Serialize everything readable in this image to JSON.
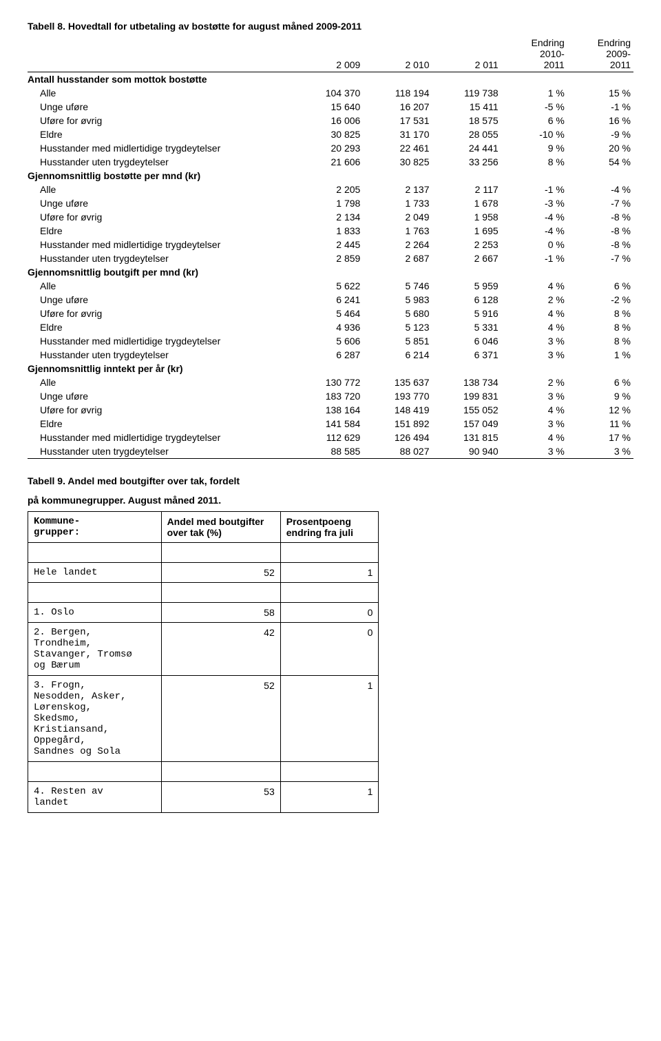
{
  "table8": {
    "title": "Tabell 8. Hovedtall for utbetaling av bostøtte for august måned 2009-2011",
    "headers": [
      "",
      "2 009",
      "2 010",
      "2 011",
      "Endring\n2010-\n2011",
      "Endring\n2009-\n2011"
    ],
    "sections": [
      {
        "label": "Antall husstander som mottok bostøtte",
        "rows": [
          [
            "Alle",
            "104 370",
            "118 194",
            "119 738",
            "1 %",
            "15 %"
          ],
          [
            "Unge uføre",
            "15 640",
            "16 207",
            "15 411",
            "-5 %",
            "-1 %"
          ],
          [
            "Uføre for øvrig",
            "16 006",
            "17 531",
            "18 575",
            "6 %",
            "16 %"
          ],
          [
            "Eldre",
            "30 825",
            "31 170",
            "28 055",
            "-10 %",
            "-9 %"
          ],
          [
            "Husstander med midlertidige trygdeytelser",
            "20 293",
            "22 461",
            "24 441",
            "9 %",
            "20 %"
          ],
          [
            "Husstander uten trygdeytelser",
            "21 606",
            "30 825",
            "33 256",
            "8 %",
            "54 %"
          ]
        ]
      },
      {
        "label": "Gjennomsnittlig bostøtte per mnd  (kr)",
        "rows": [
          [
            "Alle",
            "2 205",
            "2 137",
            "2 117",
            "-1 %",
            "-4 %"
          ],
          [
            "Unge uføre",
            "1 798",
            "1 733",
            "1 678",
            "-3 %",
            "-7 %"
          ],
          [
            "Uføre for øvrig",
            "2 134",
            "2 049",
            "1 958",
            "-4 %",
            "-8 %"
          ],
          [
            "Eldre",
            "1 833",
            "1 763",
            "1 695",
            "-4 %",
            "-8 %"
          ],
          [
            "Husstander med midlertidige trygdeytelser",
            "2 445",
            "2 264",
            "2 253",
            "0 %",
            "-8 %"
          ],
          [
            "Husstander uten trygdeytelser",
            "2 859",
            "2 687",
            "2 667",
            "-1 %",
            "-7 %"
          ]
        ]
      },
      {
        "label": "Gjennomsnittlig boutgift per mnd (kr)",
        "rows": [
          [
            "Alle",
            "5 622",
            "5 746",
            "5 959",
            "4 %",
            "6 %"
          ],
          [
            "Unge uføre",
            "6 241",
            "5 983",
            "6 128",
            "2 %",
            "-2 %"
          ],
          [
            "Uføre for øvrig",
            "5 464",
            "5 680",
            "5 916",
            "4 %",
            "8 %"
          ],
          [
            "Eldre",
            "4 936",
            "5 123",
            "5 331",
            "4 %",
            "8 %"
          ],
          [
            "Husstander med midlertidige trygdeytelser",
            "5 606",
            "5 851",
            "6 046",
            "3 %",
            "8 %"
          ],
          [
            "Husstander uten trygdeytelser",
            "6 287",
            "6 214",
            "6 371",
            "3 %",
            "1 %"
          ]
        ]
      },
      {
        "label": "Gjennomsnittlig inntekt per år (kr)",
        "rows": [
          [
            "Alle",
            "130 772",
            "135 637",
            "138 734",
            "2 %",
            "6 %"
          ],
          [
            "Unge uføre",
            "183 720",
            "193 770",
            "199 831",
            "3 %",
            "9 %"
          ],
          [
            "Uføre for øvrig",
            "138 164",
            "148 419",
            "155 052",
            "4 %",
            "12 %"
          ],
          [
            "Eldre",
            "141 584",
            "151 892",
            "157 049",
            "3 %",
            "11 %"
          ],
          [
            "Husstander med midlertidige trygdeytelser",
            "112 629",
            "126 494",
            "131 815",
            "4 %",
            "17 %"
          ],
          [
            "Husstander uten trygdeytelser",
            "88 585",
            "88 027",
            "90 940",
            "3 %",
            "3 %"
          ]
        ]
      }
    ]
  },
  "table9": {
    "title_l1": "Tabell 9. Andel med boutgifter over tak, fordelt",
    "title_l2": "på kommunegrupper. August måned 2011.",
    "headers": [
      "Kommune-\ngrupper:",
      "Andel med boutgifter over tak (%)",
      "Prosentpoeng endring fra juli"
    ],
    "rows": [
      {
        "label": "Hele landet",
        "v1": "52",
        "v2": "1",
        "blank_before": true,
        "blank_after": true
      },
      {
        "label": "1. Oslo",
        "v1": "58",
        "v2": "0"
      },
      {
        "label": "2. Bergen,\nTrondheim,\nStavanger, Tromsø\nog Bærum",
        "v1": "42",
        "v2": "0"
      },
      {
        "label": "3. Frogn,\nNesodden, Asker,\nLørenskog,\nSkedsmo,\nKristiansand,\nOppegård,\nSandnes og Sola",
        "v1": "52",
        "v2": "1",
        "blank_after": true
      },
      {
        "label": "4. Resten av\nlandet",
        "v1": "53",
        "v2": "1"
      }
    ]
  }
}
